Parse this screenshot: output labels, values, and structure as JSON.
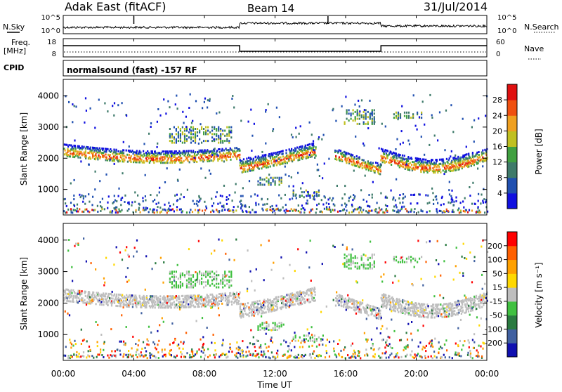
{
  "header": {
    "station": "Adak East (fitACF)",
    "beam": "Beam 14",
    "date": "31/Jul/2014"
  },
  "top_panels": {
    "nsky_label": "N.Sky",
    "nsky_ticks": [
      "10^5",
      "10^0"
    ],
    "nsearch_label": "N.Search",
    "nsearch_ticks": [
      "10^5",
      "10^0"
    ],
    "freq_label_1": "Freq.",
    "freq_label_2": "[MHz]",
    "freq_ticks": [
      "18",
      "8"
    ],
    "nave_label": "Nave",
    "nave_ticks": [
      "60",
      "0"
    ],
    "cpid_label": "CPID",
    "cpid_text": "normalsound (fast) -157 RF",
    "freq_steps": [
      {
        "from": 0,
        "to": 10.0,
        "level": "high"
      },
      {
        "from": 10.0,
        "to": 18.0,
        "level": "low"
      },
      {
        "from": 18.0,
        "to": 24,
        "level": "high"
      }
    ]
  },
  "time_axis": {
    "ticks": [
      "00:00",
      "04:00",
      "08:00",
      "12:00",
      "16:00",
      "20:00",
      "00:00"
    ],
    "label": "Time UT"
  },
  "chart_data": [
    {
      "type": "heatmap",
      "name": "power",
      "ylabel": "Slant Range [km]",
      "yticks": [
        "4000",
        "3000",
        "2000",
        "1000"
      ],
      "ylim": [
        180,
        4530
      ],
      "xlim_hours": [
        0,
        24
      ],
      "colorbar": {
        "label": "Power [dB]",
        "ticks": [
          "28",
          "24",
          "20",
          "16",
          "12",
          "8",
          "4"
        ],
        "range": [
          0,
          32
        ],
        "colors": [
          "#1010e0",
          "#2050b0",
          "#3e7a6a",
          "#40a040",
          "#c0c020",
          "#f0a020",
          "#f05010",
          "#e01010"
        ]
      },
      "bands": [
        {
          "t0": 0.0,
          "t1": 10.0,
          "r_start": 2270,
          "r_end": 2170,
          "r_mid": 2050,
          "width": 350
        },
        {
          "t0": 10.0,
          "t1": 14.3,
          "r_start": 1750,
          "r_end": 2300,
          "r_mid": 2000,
          "width": 380
        },
        {
          "t0": 15.4,
          "t1": 18.0,
          "r_start": 2150,
          "r_end": 1650,
          "r_mid": 1900,
          "width": 320
        },
        {
          "t0": 18.0,
          "t1": 24.0,
          "r_start": 2100,
          "r_end": 2150,
          "r_mid": 1750,
          "width": 380
        }
      ],
      "patches": [
        {
          "t0": 6.0,
          "t1": 9.5,
          "r0": 2500,
          "r1": 3000
        },
        {
          "t0": 15.9,
          "t1": 17.6,
          "r0": 3100,
          "r1": 3550
        },
        {
          "t0": 18.7,
          "t1": 20.3,
          "r0": 3300,
          "r1": 3500
        },
        {
          "t0": 13.0,
          "t1": 14.7,
          "r0": 800,
          "r1": 1000
        },
        {
          "t0": 11.0,
          "t1": 12.5,
          "r0": 1150,
          "r1": 1400
        }
      ]
    },
    {
      "type": "heatmap",
      "name": "velocity",
      "ylabel": "Slant Range [km]",
      "yticks": [
        "4000",
        "3000",
        "2000",
        "1000"
      ],
      "ylim": [
        180,
        4530
      ],
      "xlim_hours": [
        0,
        24
      ],
      "colorbar": {
        "label": "Velocity [m s⁻¹]",
        "ticks": [
          "200",
          "100",
          "50",
          "15",
          "-15",
          "-50",
          "-100",
          "-200"
        ],
        "range": [
          -250,
          250
        ],
        "colors": [
          "#ff0000",
          "#ff6000",
          "#ffa000",
          "#ffd800",
          "#bebebe",
          "#40c040",
          "#2a7a40",
          "#4060a0",
          "#1010b0"
        ]
      },
      "bands": [
        {
          "t0": 0.0,
          "t1": 10.0,
          "r_start": 2270,
          "r_end": 2170,
          "r_mid": 2050,
          "width": 350
        },
        {
          "t0": 10.0,
          "t1": 14.3,
          "r_start": 1750,
          "r_end": 2300,
          "r_mid": 2000,
          "width": 380
        },
        {
          "t0": 15.4,
          "t1": 18.0,
          "r_start": 2150,
          "r_end": 1650,
          "r_mid": 1900,
          "width": 320
        },
        {
          "t0": 18.0,
          "t1": 24.0,
          "r_start": 2100,
          "r_end": 2150,
          "r_mid": 1750,
          "width": 380
        }
      ],
      "patches": [
        {
          "t0": 6.0,
          "t1": 9.5,
          "r0": 2500,
          "r1": 3000
        },
        {
          "t0": 15.9,
          "t1": 17.6,
          "r0": 3100,
          "r1": 3550
        },
        {
          "t0": 18.7,
          "t1": 20.3,
          "r0": 3300,
          "r1": 3500
        },
        {
          "t0": 13.0,
          "t1": 14.7,
          "r0": 800,
          "r1": 1000
        },
        {
          "t0": 11.0,
          "t1": 12.5,
          "r0": 1150,
          "r1": 1400
        }
      ]
    }
  ]
}
